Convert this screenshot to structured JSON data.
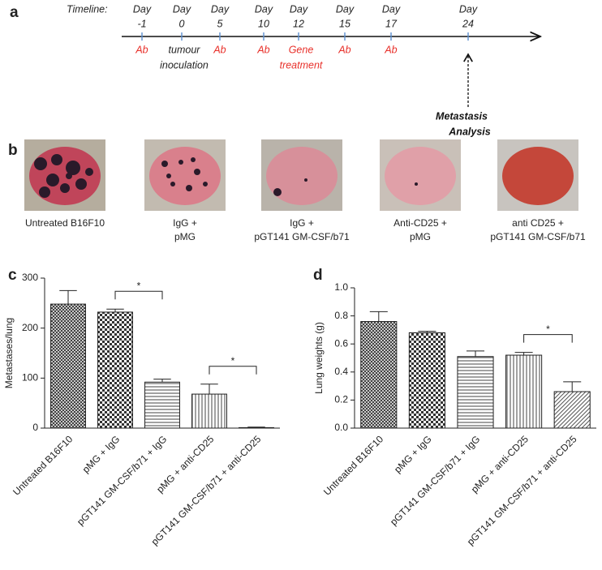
{
  "panel_labels": [
    "a",
    "b",
    "c",
    "d"
  ],
  "timeline": {
    "title": "Timeline:",
    "events": [
      {
        "label": "Day",
        "day": "-1",
        "text": [
          "Ab"
        ],
        "color": "#e8302a"
      },
      {
        "label": "Day",
        "day": "0",
        "text": [
          "tumour",
          "inoculation"
        ],
        "color": "#222222"
      },
      {
        "label": "Day",
        "day": "5",
        "text": [
          "Ab"
        ],
        "color": "#e8302a"
      },
      {
        "label": "Day",
        "day": "10",
        "text": [
          "Ab"
        ],
        "color": "#e8302a"
      },
      {
        "label": "Day",
        "day": "12",
        "text": [
          "Gene",
          "treatment"
        ],
        "color": "#e8302a"
      },
      {
        "label": "Day",
        "day": "15",
        "text": [
          "Ab"
        ],
        "color": "#e8302a"
      },
      {
        "label": "Day",
        "day": "17",
        "text": [
          "Ab"
        ],
        "color": "#e8302a"
      },
      {
        "label": "Day",
        "day": "24",
        "text": [
          "Metastasis",
          "Analysis"
        ],
        "color": "#111111",
        "arrow": "dashed"
      }
    ]
  },
  "photos": [
    {
      "caption": [
        "Untreated B16F10"
      ]
    },
    {
      "caption": [
        "IgG +",
        "pMG"
      ]
    },
    {
      "caption": [
        "IgG +",
        "pGT141 GM-CSF/b71"
      ]
    },
    {
      "caption": [
        "Anti-CD25 +",
        "pMG"
      ]
    },
    {
      "caption": [
        "anti CD25 +",
        "pGT141 GM-CSF/b71"
      ]
    }
  ],
  "chart_data": [
    {
      "type": "bar",
      "ylabel": "Metastases/lung",
      "categories": [
        "Untreated B16F10",
        "pMG + IgG",
        "pGT141 GM-CSF/b71 + IgG",
        "pMG + anti-CD25",
        "pGT141 GM-CSF/b71 + anti-CD25"
      ],
      "values": [
        248,
        232,
        92,
        68,
        1
      ],
      "errors": [
        27,
        6,
        6,
        20,
        1
      ],
      "patterns": [
        "crosshatch",
        "checker",
        "horizontal",
        "vertical",
        "diagonal"
      ],
      "ylim": [
        0,
        300
      ],
      "yticks": [
        0,
        100,
        200,
        300
      ],
      "annotations": [
        {
          "between": [
            "pMG + IgG",
            "pGT141 GM-CSF/b71 + IgG"
          ],
          "text": "*"
        },
        {
          "between": [
            "pMG + anti-CD25",
            "pGT141 GM-CSF/b71 + anti-CD25"
          ],
          "text": "*"
        }
      ]
    },
    {
      "type": "bar",
      "ylabel": "Lung weights (g)",
      "categories": [
        "Untreated B16F10",
        "pMG + IgG",
        "pGT141 GM-CSF/b71 + IgG",
        "pMG + anti-CD25",
        "pGT141 GM-CSF/b71 + anti-CD25"
      ],
      "values": [
        0.76,
        0.68,
        0.51,
        0.52,
        0.26
      ],
      "errors": [
        0.07,
        0.01,
        0.04,
        0.02,
        0.07
      ],
      "patterns": [
        "crosshatch",
        "checker",
        "horizontal",
        "vertical",
        "diagonal"
      ],
      "ylim": [
        0,
        1.0
      ],
      "yticks": [
        {
          "value": 0,
          "label": "0.0"
        },
        0.2,
        0.4,
        0.6,
        0.8,
        {
          "value": 1.0,
          "label": "1.0"
        }
      ],
      "annotations": [
        {
          "between": [
            "pMG + anti-CD25",
            "pGT141 GM-CSF/b71 + anti-CD25"
          ],
          "text": "*"
        }
      ]
    }
  ]
}
